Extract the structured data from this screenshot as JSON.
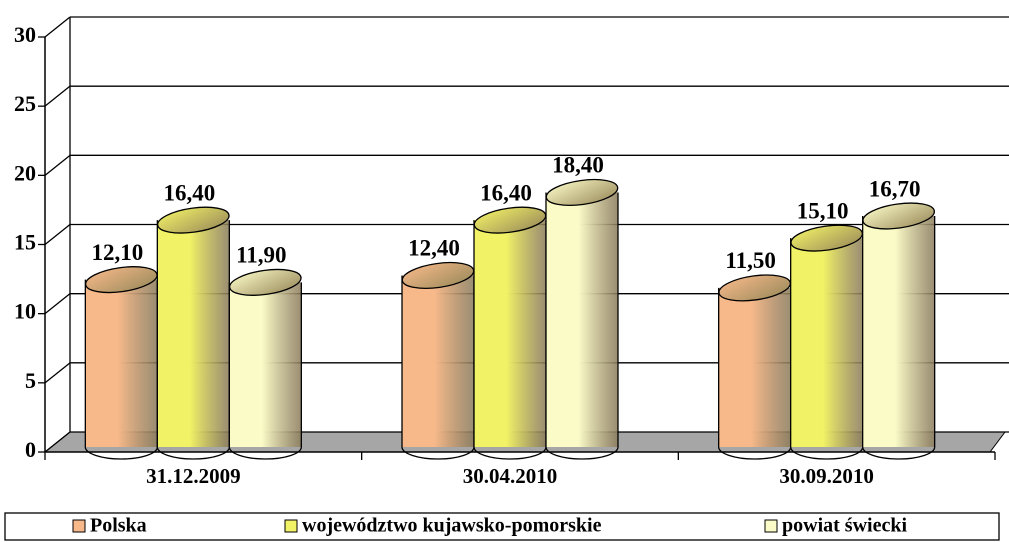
{
  "chart_data": {
    "type": "bar3d",
    "categories": [
      "31.12.2009",
      "30.04.2010",
      "30.09.2010"
    ],
    "series": [
      {
        "name": "Polska",
        "color": "#f7b98a",
        "values": [
          12.1,
          12.4,
          11.5
        ],
        "value_labels": [
          "12,10",
          "12,40",
          "11,50"
        ]
      },
      {
        "name": "województwo kujawsko-pomorskie",
        "color": "#f2f266",
        "values": [
          16.4,
          16.4,
          15.1
        ],
        "value_labels": [
          "16,40",
          "16,40",
          "15,10"
        ]
      },
      {
        "name": "powiat świecki",
        "color": "#fbfbc8",
        "values": [
          11.9,
          18.4,
          16.7
        ],
        "value_labels": [
          "11,90",
          "18,40",
          "16,70"
        ]
      }
    ],
    "ylim": [
      0,
      30
    ],
    "yticks": [
      0,
      5,
      10,
      15,
      20,
      25,
      30
    ],
    "grid": true,
    "legend": "bottom"
  }
}
